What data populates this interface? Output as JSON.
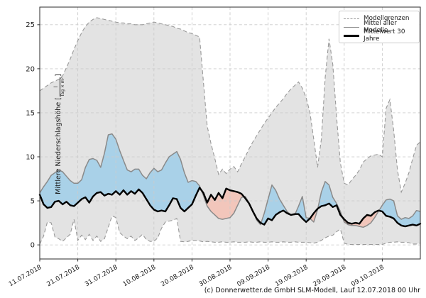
{
  "figure": {
    "footer": "(c) Donnerwetter.de GmbH SLM-Modell, Lauf 12.07.2018 00 Uhr"
  },
  "chart_data": {
    "type": "line",
    "title": "",
    "xlabel": "",
    "ylabel": "Mittlere Niederschlagshöhe [l/(Tag × m²)]",
    "ylabel_parts": {
      "prefix": "Mittlere Niederschlagshöhe [",
      "numerator": "l",
      "denominator": "Tag × m²",
      "suffix": "]"
    },
    "grid": true,
    "x_unit": "days since 11.07.2018",
    "x_range_days": [
      0,
      100
    ],
    "x_tick_days": [
      0,
      10,
      20,
      30,
      40,
      50,
      60,
      70,
      80,
      90
    ],
    "x_tick_labels": [
      "11.07.2018",
      "21.07.2018",
      "31.07.2018",
      "10.08.2018",
      "20.08.2018",
      "30.08.2018",
      "09.09.2018",
      "19.09.2018",
      "29.09.2018",
      "09.10.2018"
    ],
    "y_ticks": [
      0,
      5,
      10,
      15,
      20,
      25
    ],
    "ylim": [
      -1.6,
      27.0
    ],
    "legend": {
      "position": "top-right",
      "items": [
        {
          "label": "Modellgrenzen",
          "style": "dashed",
          "color": "#999999"
        },
        {
          "label": "Mittel aller Modelle",
          "style": "solid",
          "color": "#8a8a8a"
        },
        {
          "label": "Mittelwert 30 Jahre",
          "style": "solid-thick",
          "color": "#000000"
        }
      ]
    },
    "fills": {
      "band_color": "#e3e3e3",
      "above_color": "#a9d1e8",
      "below_color": "#f2c6bb"
    },
    "series": [
      {
        "name": "Modellgrenzen (obere Grenze)",
        "role": "upper_bound",
        "color": "#999999",
        "line": "dashed",
        "values": [
          17.5,
          17.8,
          18.1,
          18.4,
          18.6,
          18.8,
          19.2,
          20.1,
          21.1,
          22.2,
          23.2,
          24.1,
          24.8,
          25.3,
          25.6,
          25.8,
          25.7,
          25.6,
          25.5,
          25.4,
          25.3,
          25.2,
          25.2,
          25.1,
          25.1,
          25.0,
          25.0,
          25.0,
          25.1,
          25.2,
          25.3,
          25.2,
          25.1,
          25.0,
          24.9,
          24.8,
          24.6,
          24.5,
          24.3,
          24.1,
          24.0,
          23.8,
          23.6,
          18.5,
          13.5,
          11.5,
          9.8,
          8.0,
          8.6,
          8.1,
          8.6,
          8.9,
          8.3,
          9.2,
          10.0,
          10.9,
          11.7,
          12.4,
          13.1,
          13.8,
          14.4,
          15.0,
          15.6,
          16.1,
          16.6,
          17.2,
          17.7,
          18.1,
          18.5,
          17.8,
          16.7,
          15.0,
          12.0,
          8.8,
          12.0,
          19.0,
          23.4,
          20.5,
          14.5,
          9.3,
          7.0,
          6.8,
          7.4,
          7.9,
          8.5,
          9.4,
          9.8,
          10.1,
          10.2,
          10.3,
          10.0,
          15.5,
          16.5,
          13.0,
          8.5,
          6.0,
          7.0,
          8.2,
          9.8,
          11.3,
          11.7
        ]
      },
      {
        "name": "Modellgrenzen (untere Grenze)",
        "role": "lower_bound",
        "color": "#999999",
        "line": "dashed",
        "values": [
          0.1,
          1.0,
          2.6,
          2.5,
          0.9,
          0.7,
          0.4,
          0.8,
          1.2,
          2.9,
          0.5,
          1.1,
          0.6,
          1.2,
          0.5,
          1.0,
          0.4,
          0.7,
          2.0,
          3.3,
          3.1,
          1.4,
          1.0,
          0.7,
          1.0,
          0.5,
          0.8,
          1.2,
          0.6,
          0.4,
          0.4,
          0.8,
          1.9,
          2.6,
          2.7,
          2.8,
          3.0,
          0.4,
          0.35,
          0.4,
          0.5,
          0.5,
          0.45,
          0.35,
          0.4,
          0.35,
          0.3,
          0.3,
          0.35,
          0.3,
          0.3,
          0.35,
          0.3,
          0.3,
          0.3,
          0.35,
          0.3,
          0.3,
          0.35,
          0.3,
          0.3,
          0.35,
          0.3,
          0.3,
          0.35,
          0.3,
          0.3,
          0.35,
          0.3,
          0.3,
          0.3,
          0.25,
          0.2,
          0.3,
          0.5,
          0.8,
          1.0,
          1.1,
          1.5,
          1.8,
          0.2,
          0.05,
          0.05,
          0.05,
          0.05,
          0.05,
          0.05,
          0.05,
          0.05,
          0.05,
          0.05,
          0.2,
          0.3,
          0.3,
          0.35,
          0.3,
          0.3,
          0.25,
          0.1,
          0.1,
          0.2
        ]
      },
      {
        "name": "Mittel aller Modelle",
        "role": "mean",
        "color": "#8a8a8a",
        "line": "solid",
        "values": [
          5.9,
          6.6,
          7.2,
          7.9,
          8.2,
          8.5,
          8.3,
          7.8,
          7.3,
          7.0,
          7.0,
          7.4,
          8.8,
          9.7,
          9.8,
          9.6,
          8.8,
          10.4,
          12.5,
          12.6,
          12.0,
          10.7,
          9.6,
          8.5,
          8.3,
          8.6,
          8.6,
          7.9,
          7.5,
          8.2,
          8.7,
          8.3,
          8.5,
          9.3,
          10.0,
          10.3,
          10.6,
          9.7,
          8.2,
          7.1,
          7.3,
          7.2,
          6.7,
          5.6,
          4.4,
          3.8,
          3.4,
          3.0,
          2.9,
          3.0,
          3.1,
          3.6,
          4.5,
          5.4,
          5.5,
          4.8,
          3.9,
          2.8,
          2.3,
          3.6,
          5.2,
          6.8,
          6.2,
          5.2,
          4.5,
          3.8,
          3.4,
          3.4,
          4.4,
          5.5,
          3.1,
          3.0,
          2.6,
          4.0,
          6.0,
          7.2,
          6.8,
          5.4,
          4.7,
          3.8,
          2.6,
          2.3,
          2.2,
          2.2,
          2.1,
          2.0,
          2.2,
          2.5,
          3.1,
          3.8,
          4.5,
          5.1,
          5.2,
          5.0,
          3.3,
          2.9,
          3.1,
          3.0,
          3.3,
          3.9,
          3.8
        ]
      },
      {
        "name": "Mittelwert 30 Jahre",
        "role": "climate",
        "color": "#000000",
        "line": "solid-thick",
        "values": [
          5.7,
          4.6,
          4.2,
          4.3,
          4.9,
          5.0,
          4.6,
          4.9,
          4.5,
          4.4,
          4.8,
          5.2,
          5.4,
          4.8,
          5.5,
          5.9,
          6.0,
          5.6,
          5.8,
          5.7,
          6.1,
          5.7,
          6.2,
          5.7,
          6.1,
          5.8,
          6.3,
          5.9,
          5.2,
          4.5,
          4.0,
          3.8,
          3.9,
          3.8,
          4.5,
          5.3,
          5.2,
          4.2,
          3.8,
          4.2,
          4.6,
          5.6,
          6.5,
          5.9,
          4.8,
          5.7,
          5.1,
          5.9,
          5.3,
          6.4,
          6.2,
          6.1,
          6.0,
          5.8,
          5.3,
          4.7,
          3.8,
          3.0,
          2.5,
          2.3,
          3.0,
          2.8,
          3.4,
          3.7,
          3.9,
          3.6,
          3.4,
          3.5,
          3.5,
          3.0,
          2.6,
          3.0,
          3.6,
          4.1,
          4.4,
          4.5,
          4.7,
          4.3,
          4.5,
          3.4,
          2.9,
          2.5,
          2.4,
          2.5,
          2.4,
          3.0,
          3.4,
          3.3,
          3.7,
          3.9,
          3.8,
          3.3,
          3.2,
          3.0,
          2.5,
          2.2,
          2.1,
          2.2,
          2.3,
          2.2,
          2.4
        ]
      }
    ],
    "style": {
      "grid_color": "#cbcbcb",
      "spine_color": "#2b2b2b",
      "tick_label_color": "#1a1a1a"
    }
  }
}
